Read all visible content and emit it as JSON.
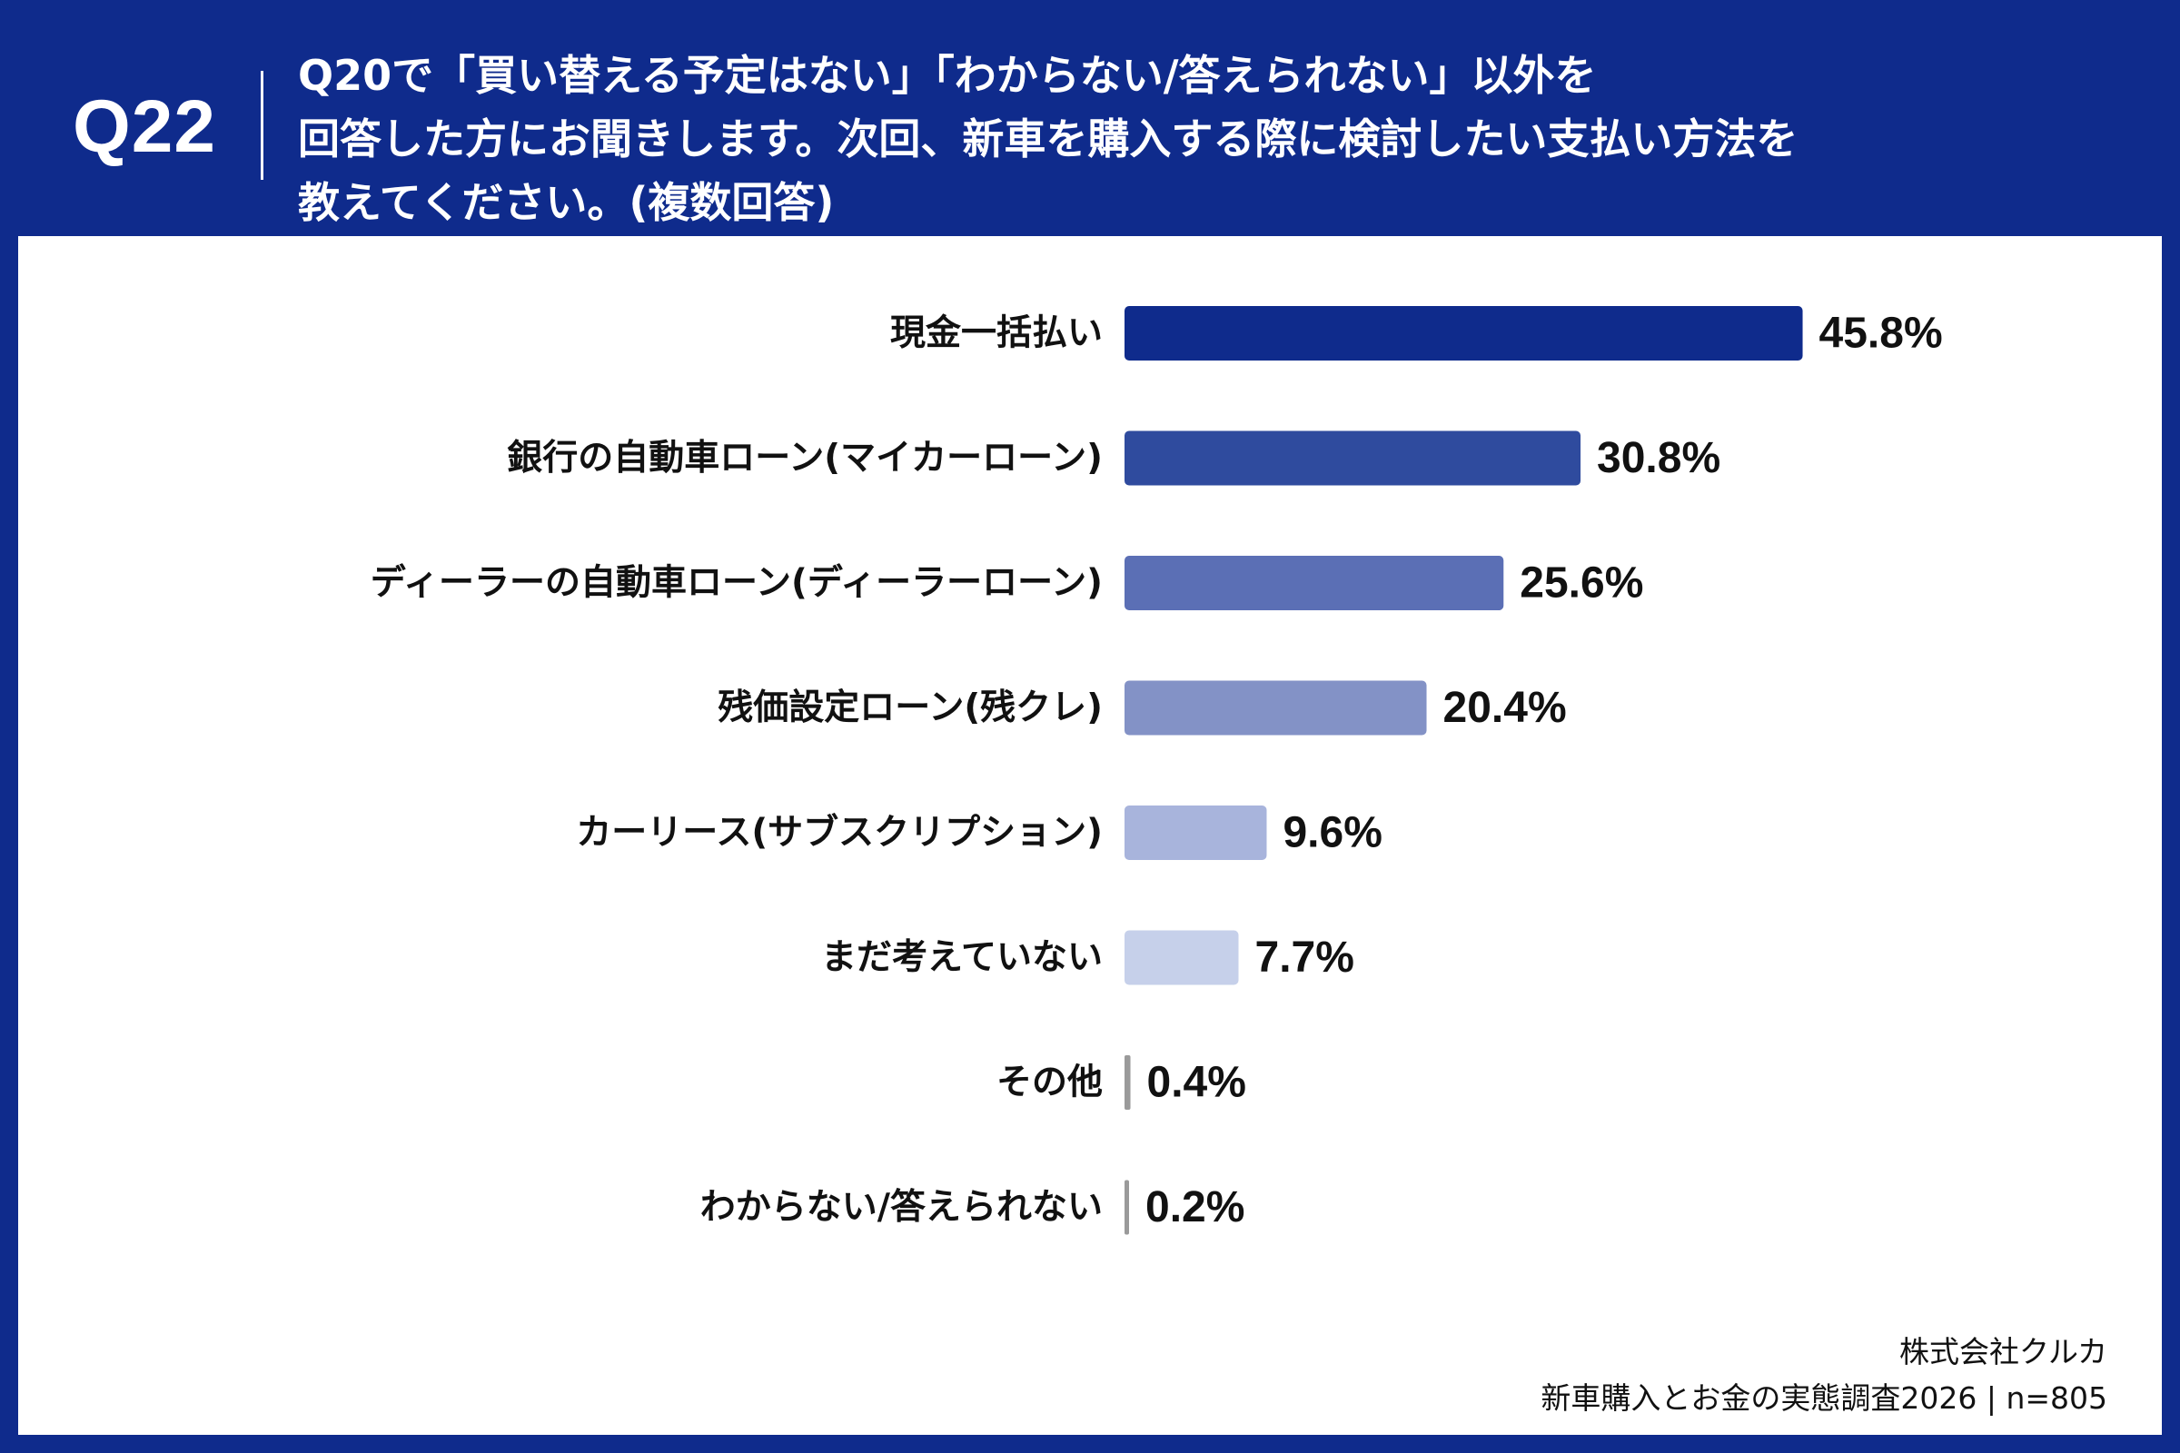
{
  "header": {
    "question_number": "Q22",
    "question_lines": [
      "Q20で「買い替える予定はない」「わからない/答えられない」以外を",
      "回答した方にお聞きします。次回、新車を購入する際に検討したい支払い方法を",
      "教えてください。(複数回答)"
    ]
  },
  "footer": {
    "company": "株式会社クルカ",
    "survey": "新車購入とお金の実態調査2026 | n=805"
  },
  "colors": {
    "header_background": "#0f2b8c",
    "panel_background": "#ffffff",
    "text": "#111111",
    "bar_colors": [
      "#0f2b8c",
      "#2f4b9e",
      "#5b6fb5",
      "#8392c6",
      "#a8b4dc",
      "#c6d0ea",
      "#9a9a9a",
      "#9a9a9a"
    ]
  },
  "chart_data": {
    "type": "bar",
    "orientation": "horizontal",
    "unit": "%",
    "xlim": [
      0,
      50
    ],
    "grid": false,
    "legend": "none",
    "categories": [
      "現金一括払い",
      "銀行の自動車ローン(マイカーローン)",
      "ディーラーの自動車ローン(ディーラーローン)",
      "残価設定ローン(残クレ)",
      "カーリース(サブスクリプション)",
      "まだ考えていない",
      "その他",
      "わからない/答えられない"
    ],
    "values": [
      45.8,
      30.8,
      25.6,
      20.4,
      9.6,
      7.7,
      0.4,
      0.2
    ],
    "value_labels": [
      "45.8%",
      "30.8%",
      "25.6%",
      "20.4%",
      "9.6%",
      "7.7%",
      "0.4%",
      "0.2%"
    ]
  }
}
